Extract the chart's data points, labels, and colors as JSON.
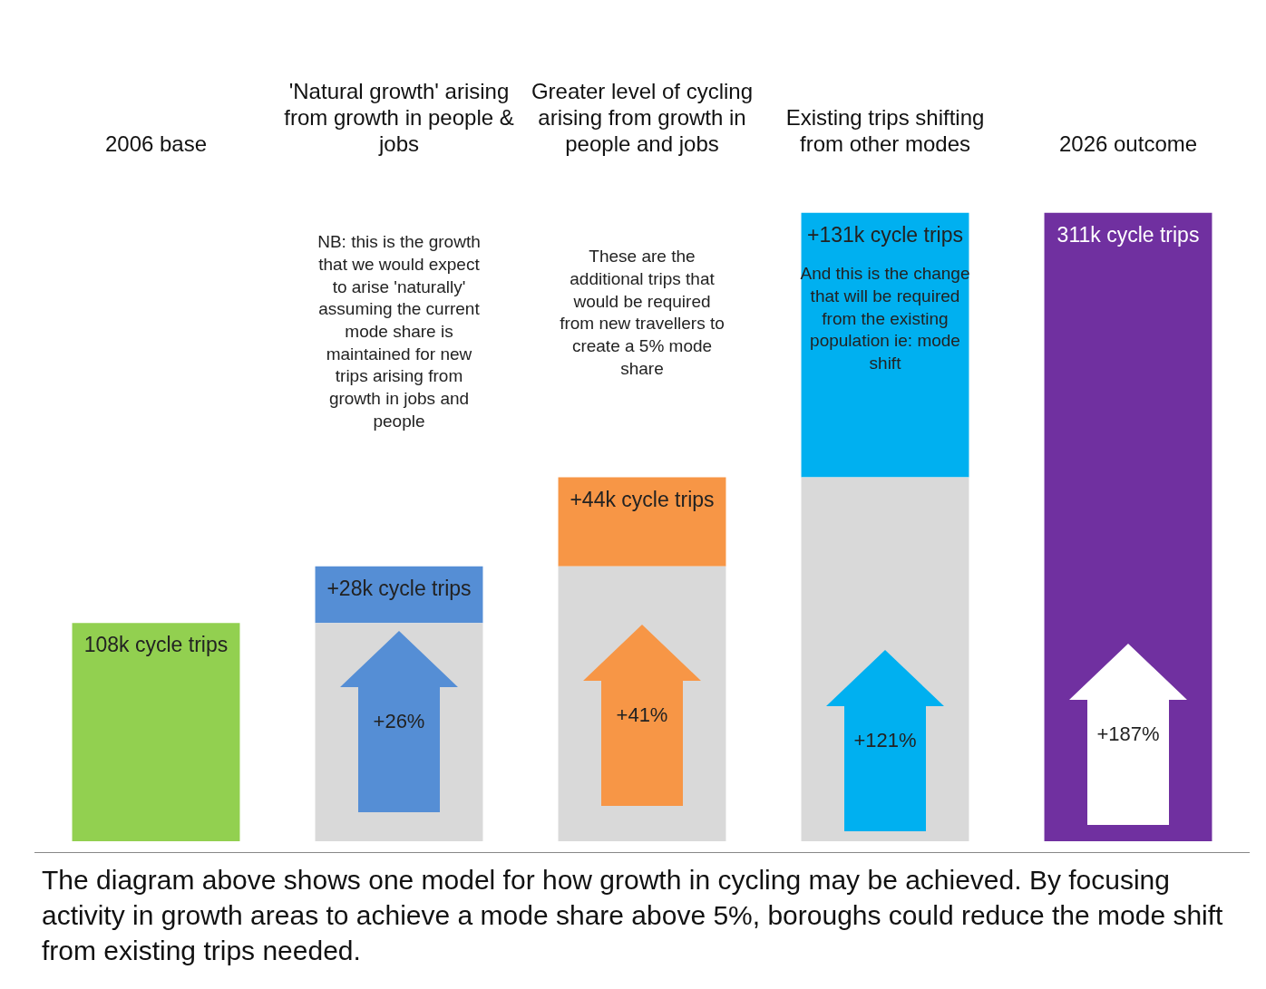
{
  "chart_data": {
    "type": "bar",
    "stacked": true,
    "grid": false,
    "legend": false,
    "tick_labels": "x",
    "categories": [
      "2006 base",
      "'Natural growth' arising from growth in people & jobs",
      "Greater level of cycling arising from growth in people and jobs",
      "Existing trips shifting from other modes",
      "2026 outcome"
    ],
    "series": [
      {
        "color": "#d9d9d9",
        "values": [
          0,
          108,
          136,
          180,
          0
        ]
      },
      {
        "colors": [
          "#92d050",
          "#558ed5",
          "#f79646",
          "#00b0f0",
          "#7030a0"
        ],
        "values": [
          108,
          28,
          44,
          131,
          311
        ],
        "value_labels": [
          "108k cycle trips",
          "+28k cycle trips",
          "+44k cycle trips",
          "+131k cycle trips",
          "311k cycle trips"
        ]
      }
    ],
    "annotations": [
      "NB: this is the growth that we would expect to arise 'naturally' assuming the current mode share is maintained for new trips arising from growth in jobs and people",
      "These are the additional trips that would be required from new travellers to create a 5% mode share",
      "And this is the change that will be required from the existing population ie: mode shift",
      "+26%",
      "+41%",
      "+121%",
      "+187%",
      "The diagram above shows one model for how growth in cycling may be achieved. By focusing activity in growth areas to achieve a mode share above 5%, boroughs could reduce the mode shift from existing trips needed."
    ]
  }
}
